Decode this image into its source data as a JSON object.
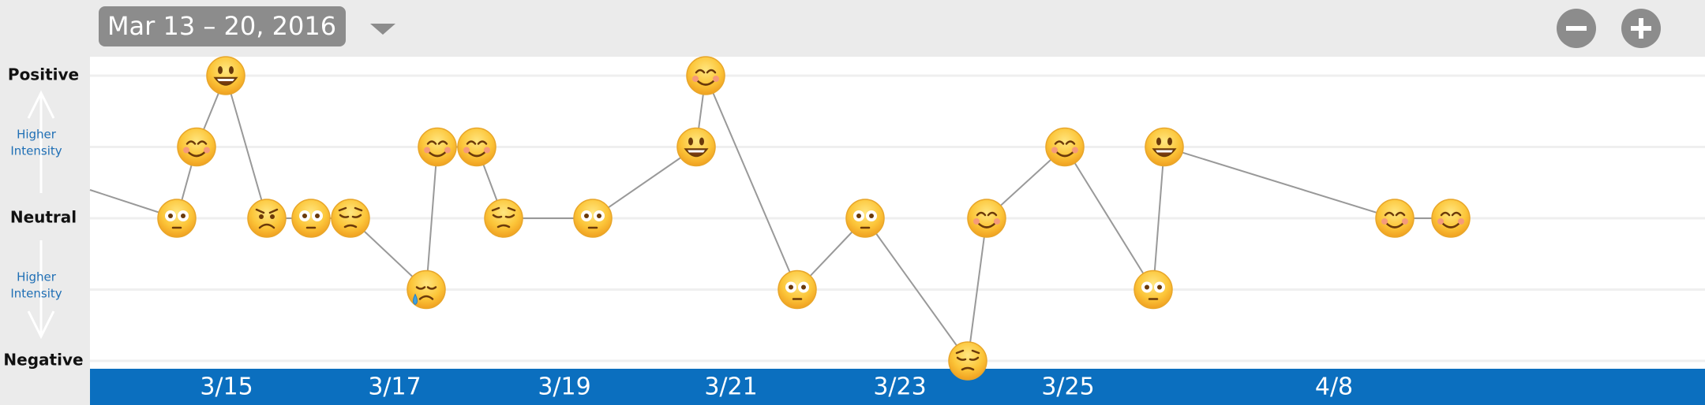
{
  "header": {
    "date_range": "Mar 13 – 20, 2016"
  },
  "y_axis": [
    {
      "label": "Positive",
      "level": 2
    },
    {
      "label": "Higher Intensity",
      "level": 1
    },
    {
      "label": "Neutral",
      "level": 0
    },
    {
      "label": "Higher Intensity",
      "level": -1
    },
    {
      "label": "Negative",
      "level": -2
    }
  ],
  "x_labels": [
    "3/15",
    "3/17",
    "3/19",
    "3/21",
    "3/23",
    "3/25",
    "4/8"
  ],
  "entries": [
    {
      "mood": "flushed",
      "level": 0
    },
    {
      "mood": "smile",
      "level": 1
    },
    {
      "mood": "grin",
      "level": 2
    },
    {
      "mood": "frown",
      "level": 0
    },
    {
      "mood": "flushed",
      "level": 0
    },
    {
      "mood": "pensive",
      "level": 0
    },
    {
      "mood": "cry",
      "level": -1
    },
    {
      "mood": "smile",
      "level": 1
    },
    {
      "mood": "smile",
      "level": 1
    },
    {
      "mood": "pensive",
      "level": 0
    },
    {
      "mood": "flushed",
      "level": 0
    },
    {
      "mood": "grin",
      "level": 1
    },
    {
      "mood": "smile",
      "level": 2
    },
    {
      "mood": "flushed",
      "level": -1
    },
    {
      "mood": "flushed",
      "level": 0
    },
    {
      "mood": "pensive",
      "level": -2
    },
    {
      "mood": "smile",
      "level": 0
    },
    {
      "mood": "smile",
      "level": 1
    },
    {
      "mood": "flushed",
      "level": -1
    },
    {
      "mood": "grin",
      "level": 1
    },
    {
      "mood": "smile",
      "level": 0
    },
    {
      "mood": "smile",
      "level": 0
    }
  ]
}
